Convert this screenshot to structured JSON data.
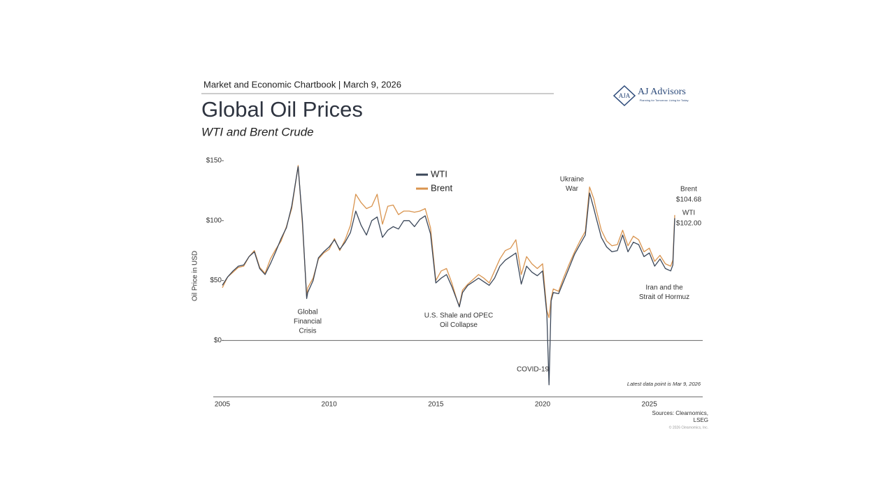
{
  "header": "Market and Economic Chartbook | March 9, 2026",
  "logo": {
    "name": "AJ Advisors",
    "tagline": "Planning for Tomorrow. Living for Today."
  },
  "chart_data": {
    "type": "line",
    "title": "Global Oil Prices",
    "subtitle": "WTI and Brent Crude",
    "y_label": "Oil Price in USD",
    "x": [
      2005.0,
      2005.25,
      2005.5,
      2005.75,
      2006.0,
      2006.25,
      2006.5,
      2006.75,
      2007.0,
      2007.25,
      2007.5,
      2007.75,
      2008.0,
      2008.25,
      2008.5,
      2008.55,
      2008.75,
      2008.95,
      2009.0,
      2009.25,
      2009.5,
      2009.75,
      2010.0,
      2010.25,
      2010.5,
      2010.75,
      2011.0,
      2011.25,
      2011.5,
      2011.75,
      2012.0,
      2012.25,
      2012.5,
      2012.75,
      2013.0,
      2013.25,
      2013.5,
      2013.75,
      2014.0,
      2014.25,
      2014.5,
      2014.75,
      2015.0,
      2015.25,
      2015.5,
      2015.75,
      2016.0,
      2016.1,
      2016.25,
      2016.5,
      2016.75,
      2017.0,
      2017.25,
      2017.5,
      2017.75,
      2018.0,
      2018.25,
      2018.5,
      2018.75,
      2019.0,
      2019.25,
      2019.5,
      2019.75,
      2020.0,
      2020.2,
      2020.3,
      2020.4,
      2020.5,
      2020.75,
      2021.0,
      2021.25,
      2021.5,
      2021.75,
      2022.0,
      2022.2,
      2022.4,
      2022.5,
      2022.75,
      2023.0,
      2023.25,
      2023.5,
      2023.75,
      2024.0,
      2024.25,
      2024.5,
      2024.75,
      2025.0,
      2025.25,
      2025.5,
      2025.75,
      2026.0,
      2026.1,
      2026.19
    ],
    "series": [
      {
        "name": "WTI",
        "color": "#3b4759",
        "values": [
          46,
          53,
          58,
          62,
          63,
          70,
          74,
          60,
          55,
          64,
          74,
          85,
          94,
          112,
          140,
          145,
          100,
          35,
          40,
          50,
          69,
          74,
          78,
          84,
          76,
          82,
          90,
          108,
          96,
          88,
          100,
          103,
          86,
          92,
          95,
          93,
          100,
          100,
          95,
          101,
          104,
          89,
          48,
          52,
          55,
          45,
          33,
          28,
          40,
          46,
          49,
          52,
          49,
          46,
          52,
          62,
          67,
          70,
          73,
          47,
          62,
          57,
          54,
          58,
          22,
          -37,
          33,
          40,
          39,
          50,
          61,
          72,
          80,
          88,
          123,
          110,
          103,
          86,
          78,
          74,
          75,
          88,
          74,
          82,
          80,
          70,
          73,
          62,
          68,
          60,
          58,
          63,
          102.0
        ],
        "value_labels": [
          null,
          null,
          null,
          null,
          null,
          null,
          null,
          null,
          null,
          null,
          null,
          null,
          null,
          null,
          null,
          null,
          null,
          null,
          null,
          null,
          null,
          null,
          null,
          null,
          null,
          null,
          null,
          null,
          null,
          null,
          null,
          null,
          null,
          null,
          null,
          null,
          null,
          null,
          null,
          null,
          null,
          null,
          null,
          null,
          null,
          null,
          null,
          null,
          null,
          null,
          null,
          null,
          null,
          null,
          null,
          null,
          null,
          null,
          null,
          null,
          null,
          null,
          null,
          null,
          null,
          null,
          null,
          null,
          null,
          null,
          null,
          null,
          null,
          null,
          null,
          null,
          null,
          null,
          null,
          null,
          null,
          null,
          null,
          null,
          null,
          null,
          null,
          null,
          null,
          null,
          null,
          null,
          "$102.00"
        ]
      },
      {
        "name": "Brent",
        "color": "#d9944f",
        "values": [
          44,
          53,
          57,
          61,
          62,
          70,
          75,
          61,
          56,
          68,
          76,
          83,
          95,
          110,
          140,
          146,
          97,
          37,
          44,
          52,
          68,
          73,
          76,
          85,
          75,
          84,
          96,
          122,
          115,
          110,
          112,
          122,
          97,
          112,
          113,
          105,
          108,
          108,
          107,
          108,
          110,
          94,
          50,
          58,
          60,
          48,
          33,
          29,
          42,
          47,
          51,
          55,
          52,
          48,
          58,
          68,
          75,
          77,
          84,
          55,
          70,
          64,
          60,
          64,
          25,
          19,
          35,
          43,
          41,
          53,
          64,
          74,
          83,
          91,
          128,
          118,
          110,
          92,
          83,
          79,
          80,
          92,
          79,
          87,
          84,
          74,
          77,
          66,
          71,
          64,
          62,
          67,
          104.68
        ],
        "value_labels": [
          null,
          null,
          null,
          null,
          null,
          null,
          null,
          null,
          null,
          null,
          null,
          null,
          null,
          null,
          null,
          null,
          null,
          null,
          null,
          null,
          null,
          null,
          null,
          null,
          null,
          null,
          null,
          null,
          null,
          null,
          null,
          null,
          null,
          null,
          null,
          null,
          null,
          null,
          null,
          null,
          null,
          null,
          null,
          null,
          null,
          null,
          null,
          null,
          null,
          null,
          null,
          null,
          null,
          null,
          null,
          null,
          null,
          null,
          null,
          null,
          null,
          null,
          null,
          null,
          null,
          null,
          null,
          null,
          null,
          null,
          null,
          null,
          null,
          null,
          null,
          null,
          null,
          null,
          null,
          null,
          null,
          null,
          null,
          null,
          null,
          null,
          null,
          null,
          null,
          null,
          null,
          null,
          "$104.68"
        ]
      }
    ],
    "xlim": [
      2005,
      2027.5
    ],
    "xticks": [
      2005,
      2010,
      2015,
      2020,
      2025
    ],
    "ylim": [
      -47,
      150
    ],
    "yticks": [
      {
        "value": 0,
        "label": "$0"
      },
      {
        "value": 50,
        "label": "$50"
      },
      {
        "value": 100,
        "label": "$100"
      },
      {
        "value": 150,
        "label": "$150"
      }
    ],
    "zero_line": true,
    "legend": true,
    "annotations": [
      {
        "lines": [
          "Global",
          "Financial",
          "Crisis"
        ]
      },
      {
        "lines": [
          "U.S. Shale and OPEC",
          "Oil Collapse"
        ]
      },
      {
        "lines": [
          "COVID-19"
        ]
      },
      {
        "lines": [
          "Ukraine",
          "War"
        ]
      },
      {
        "lines": [
          "Iran and the",
          "Strait of Hormuz"
        ]
      }
    ],
    "note": "Latest data point is Mar 9, 2026"
  },
  "sources": [
    "Sources: Clearnomics,",
    "LSEG"
  ],
  "copyright": "© 2026 Clearnomics, Inc."
}
